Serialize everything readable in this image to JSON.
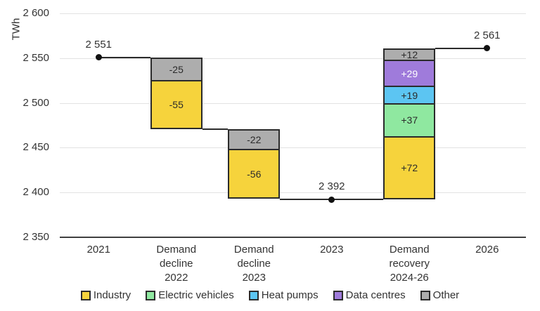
{
  "chart_data": {
    "type": "bar",
    "subtype": "waterfall",
    "title": "",
    "ylabel": "TWh",
    "xlabel": "",
    "ylim": [
      2350,
      2600
    ],
    "ytick_interval": 50,
    "grid": "horizontal",
    "legend_position": "bottom",
    "yticks": [
      {
        "value": 2600,
        "label": "2 600"
      },
      {
        "value": 2550,
        "label": "2 550"
      },
      {
        "value": 2500,
        "label": "2 500"
      },
      {
        "value": 2450,
        "label": "2 450"
      },
      {
        "value": 2400,
        "label": "2 400"
      },
      {
        "value": 2350,
        "label": "2 350"
      }
    ],
    "legend": [
      {
        "name": "Industry",
        "color": "#F6D33C"
      },
      {
        "name": "Electric vehicles",
        "color": "#8FE8A0"
      },
      {
        "name": "Heat pumps",
        "color": "#5CC5F2"
      },
      {
        "name": "Data centres",
        "color": "#9F7BDB"
      },
      {
        "name": "Other",
        "color": "#ADADAD"
      }
    ],
    "columns": [
      {
        "kind": "anchor",
        "label_lines": [
          "2021"
        ],
        "value": 2551,
        "value_label": "2 551"
      },
      {
        "kind": "change",
        "label_lines": [
          "Demand",
          "decline",
          "2022"
        ],
        "segments": [
          {
            "series": "Other",
            "value": -25,
            "label": "-25"
          },
          {
            "series": "Industry",
            "value": -55,
            "label": "-55"
          }
        ]
      },
      {
        "kind": "change",
        "label_lines": [
          "Demand",
          "decline",
          "2023"
        ],
        "segments": [
          {
            "series": "Other",
            "value": -22,
            "label": "-22"
          },
          {
            "series": "Industry",
            "value": -56,
            "label": "-56"
          }
        ]
      },
      {
        "kind": "anchor",
        "label_lines": [
          "2023"
        ],
        "value": 2392,
        "value_label": "2 392"
      },
      {
        "kind": "change",
        "label_lines": [
          "Demand",
          "recovery",
          "2024-26"
        ],
        "segments": [
          {
            "series": "Other",
            "value": 12,
            "label": "+12"
          },
          {
            "series": "Data centres",
            "value": 29,
            "label": "+29",
            "label_color": "#FFFFFF"
          },
          {
            "series": "Heat pumps",
            "value": 19,
            "label": "+19"
          },
          {
            "series": "Electric vehicles",
            "value": 37,
            "label": "+37"
          },
          {
            "series": "Industry",
            "value": 72,
            "label": "+72"
          }
        ]
      },
      {
        "kind": "anchor",
        "label_lines": [
          "2026"
        ],
        "value": 2561,
        "value_label": "2 561"
      }
    ],
    "colors": {
      "background": "#FFFFFF",
      "grid": "#E2E2E2",
      "axis": "#404040",
      "outline": "#2B2B2B",
      "text": "#333333"
    }
  }
}
